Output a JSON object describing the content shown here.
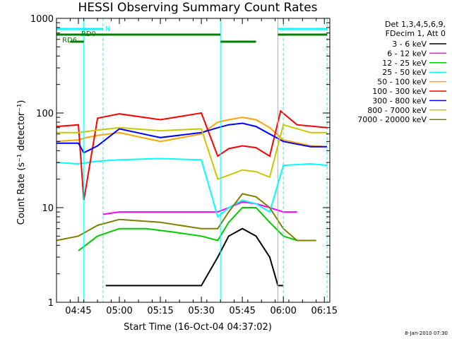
{
  "chart_data": {
    "type": "line",
    "title": "HESSI Observing Summary Count Rates",
    "xlabel": "Start Time (16-Oct-04 04:37:02)",
    "ylabel": "Count Rate (s⁻¹ detector⁻¹)",
    "y_scale": "log",
    "ylim": [
      1,
      1000
    ],
    "xlim": [
      "04:37",
      "06:17"
    ],
    "grid": false,
    "legend_position": "top-right (outside plot)",
    "x_ticks": [
      "04:45",
      "05:00",
      "05:15",
      "05:30",
      "05:45",
      "06:00",
      "06:15"
    ],
    "y_ticks": [
      "1",
      "10",
      "100",
      "1000"
    ],
    "legend_header": [
      "Det 1,3,4,5,6,9,",
      "FDecim 1, Att 0"
    ],
    "timestamp": "8-Jan-2010 07:30",
    "series": [
      {
        "name": "3 - 6 keV",
        "color": "#000000",
        "x": [
          "04:55",
          "05:00",
          "05:15",
          "05:30",
          "05:36",
          "05:40",
          "05:45",
          "05:50",
          "05:55",
          "05:58",
          "06:00"
        ],
        "y": [
          1.5,
          1.5,
          1.5,
          1.5,
          3,
          5,
          6,
          5,
          3,
          1.5,
          1.5
        ]
      },
      {
        "name": "6 - 12 keV",
        "color": "#ff00ff",
        "x": [
          "04:54",
          "05:00",
          "05:15",
          "05:30",
          "05:36",
          "05:40",
          "05:45",
          "05:50",
          "05:55",
          "06:00",
          "06:05"
        ],
        "y": [
          8.5,
          9,
          9,
          9,
          9,
          10,
          11.5,
          11,
          10,
          9,
          9
        ]
      },
      {
        "name": "12 - 25 keV",
        "color": "#00cc00",
        "x": [
          "04:45",
          "04:52",
          "05:00",
          "05:10",
          "05:20",
          "05:30",
          "05:36",
          "05:40",
          "05:45",
          "05:50",
          "05:55",
          "06:00",
          "06:05",
          "06:12"
        ],
        "y": [
          3.5,
          5,
          6,
          6,
          5.5,
          5,
          4.5,
          7,
          10,
          10,
          7,
          5,
          4.5,
          4.5
        ]
      },
      {
        "name": "25 - 50 keV",
        "color": "#00ffff",
        "x": [
          "04:37",
          "04:45",
          "04:52",
          "05:00",
          "05:15",
          "05:30",
          "05:36",
          "05:40",
          "05:45",
          "05:50",
          "05:55",
          "06:00",
          "06:10",
          "06:16"
        ],
        "y": [
          30,
          29,
          31,
          32,
          33,
          32,
          8,
          10,
          12,
          11,
          9,
          28,
          29,
          28
        ]
      },
      {
        "name": "50 - 100 keV",
        "color": "#ffa500",
        "x": [
          "04:37",
          "04:45",
          "04:48",
          "04:52",
          "05:00",
          "05:15",
          "05:30",
          "05:36",
          "05:40",
          "05:45",
          "05:50",
          "05:55",
          "06:00",
          "06:10",
          "06:16"
        ],
        "y": [
          50,
          52,
          55,
          58,
          62,
          50,
          60,
          80,
          85,
          90,
          85,
          70,
          52,
          45,
          44
        ]
      },
      {
        "name": "100 - 300 keV",
        "color": "#ff0000",
        "x": [
          "04:37",
          "04:45",
          "04:47",
          "04:52",
          "05:00",
          "05:15",
          "05:30",
          "05:36",
          "05:40",
          "05:45",
          "05:50",
          "05:55",
          "05:59",
          "06:05",
          "06:16"
        ],
        "y": [
          72,
          75,
          12,
          88,
          98,
          85,
          100,
          35,
          42,
          45,
          43,
          35,
          105,
          75,
          70
        ]
      },
      {
        "name": "300 - 800 keV",
        "color": "#0000ff",
        "x": [
          "04:37",
          "04:45",
          "04:47",
          "04:52",
          "05:00",
          "05:15",
          "05:30",
          "05:36",
          "05:40",
          "05:45",
          "05:50",
          "05:55",
          "06:00",
          "06:10",
          "06:16"
        ],
        "y": [
          48,
          48,
          38,
          45,
          68,
          55,
          62,
          70,
          75,
          78,
          72,
          60,
          50,
          44,
          44
        ]
      },
      {
        "name": "800 - 7000 keV",
        "color": "#c8c800",
        "x": [
          "04:37",
          "04:45",
          "04:52",
          "05:00",
          "05:15",
          "05:30",
          "05:36",
          "05:40",
          "05:45",
          "05:50",
          "05:55",
          "06:00",
          "06:10",
          "06:16"
        ],
        "y": [
          62,
          62,
          66,
          70,
          65,
          68,
          20,
          22,
          25,
          24,
          21,
          75,
          62,
          62
        ]
      },
      {
        "name": "7000 - 20000 keV",
        "color": "#808000",
        "x": [
          "04:37",
          "04:45",
          "04:52",
          "05:00",
          "05:15",
          "05:30",
          "05:36",
          "05:40",
          "05:45",
          "05:50",
          "05:55",
          "06:00",
          "06:05",
          "06:12"
        ],
        "y": [
          4.5,
          5,
          6.5,
          7.5,
          7,
          6,
          6,
          9,
          14,
          13,
          10,
          6,
          4.5,
          4.5
        ]
      }
    ],
    "annotations": {
      "band_labels": [
        "N",
        "RD0",
        "RD6"
      ],
      "bands": [
        {
          "label": "N",
          "color": "#00ffff",
          "segments": [
            [
              "04:37",
              "04:54"
            ],
            [
              "05:58",
              "06:16"
            ]
          ]
        },
        {
          "label": "RD0",
          "color": "#008000",
          "segments": [
            [
              "04:37",
              "05:37"
            ],
            [
              "05:58",
              "06:16"
            ]
          ]
        },
        {
          "label": "RD6",
          "color": "#008000",
          "segments": [
            [
              "04:42",
              "04:47"
            ],
            [
              "05:37",
              "05:50"
            ]
          ]
        }
      ],
      "vlines_solid": [
        "04:47",
        "05:37",
        "05:58"
      ],
      "vlines_dashed": [
        "04:54",
        "06:00",
        "06:16"
      ]
    }
  }
}
